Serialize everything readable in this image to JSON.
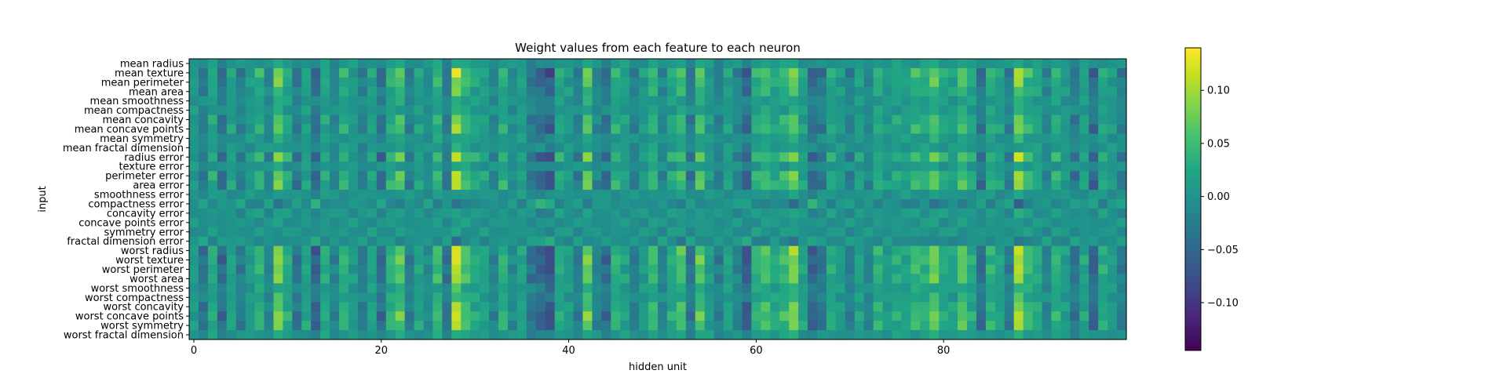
{
  "chart_data": {
    "type": "heatmap",
    "title": "Weight values from each feature to each neuron",
    "xlabel": "hidden unit",
    "ylabel": "input",
    "x_ticks": [
      0,
      20,
      40,
      60,
      80
    ],
    "n_columns": 100,
    "rows": [
      "mean radius",
      "mean texture",
      "mean perimeter",
      "mean area",
      "mean smoothness",
      "mean compactness",
      "mean concavity",
      "mean concave points",
      "mean symmetry",
      "mean fractal dimension",
      "radius error",
      "texture error",
      "perimeter error",
      "area error",
      "smoothness error",
      "compactness error",
      "concavity error",
      "concave points error",
      "symmetry error",
      "fractal dimension error",
      "worst radius",
      "worst texture",
      "worst perimeter",
      "worst area",
      "worst smoothness",
      "worst compactness",
      "worst concavity",
      "worst concave points",
      "worst symmetry",
      "worst fractal dimension"
    ],
    "colorbar": {
      "colormap": "viridis",
      "range": [
        -0.145,
        0.14
      ],
      "ticks": [
        {
          "value": 0.1,
          "label": "0.10"
        },
        {
          "value": 0.05,
          "label": "0.05"
        },
        {
          "value": 0.0,
          "label": "0.00"
        },
        {
          "value": -0.05,
          "label": "−0.05"
        },
        {
          "value": -0.1,
          "label": "−0.10"
        }
      ]
    },
    "column_strength": [
      0.01,
      -0.04,
      0.03,
      -0.05,
      0.02,
      -0.03,
      0.01,
      0.04,
      -0.02,
      0.09,
      0.03,
      -0.04,
      0.02,
      -0.06,
      0.03,
      -0.02,
      0.04,
      0.01,
      -0.03,
      0.02,
      -0.05,
      0.04,
      0.07,
      -0.03,
      0.02,
      -0.01,
      0.05,
      -0.04,
      0.12,
      0.06,
      0.03,
      0.02,
      -0.02,
      0.04,
      -0.01,
      0.02,
      -0.04,
      -0.06,
      -0.08,
      0.03,
      0.01,
      -0.03,
      0.08,
      -0.02,
      -0.05,
      0.04,
      0.02,
      -0.03,
      0.01,
      0.05,
      -0.02,
      0.03,
      0.06,
      -0.04,
      0.07,
      0.01,
      -0.03,
      0.02,
      -0.02,
      -0.07,
      0.04,
      0.06,
      0.03,
      0.05,
      0.09,
      0.02,
      -0.06,
      -0.04,
      0.03,
      0.01,
      -0.03,
      0.02,
      -0.02,
      0.04,
      0.01,
      0.03,
      0.02,
      0.05,
      0.04,
      0.08,
      0.03,
      0.02,
      0.07,
      0.03,
      -0.05,
      0.04,
      0.02,
      -0.03,
      0.11,
      0.05,
      0.03,
      -0.02,
      0.04,
      0.01,
      -0.04,
      0.02,
      -0.06,
      0.03,
      0.01,
      -0.03
    ],
    "row_gain": [
      0.25,
      1.0,
      0.8,
      0.6,
      0.3,
      0.3,
      0.7,
      0.8,
      0.3,
      0.2,
      1.0,
      0.2,
      0.9,
      0.9,
      0.1,
      -0.4,
      0.2,
      0.1,
      0.1,
      -0.3,
      1.0,
      1.0,
      0.9,
      0.9,
      0.4,
      0.5,
      0.8,
      1.0,
      0.9,
      0.3
    ]
  }
}
